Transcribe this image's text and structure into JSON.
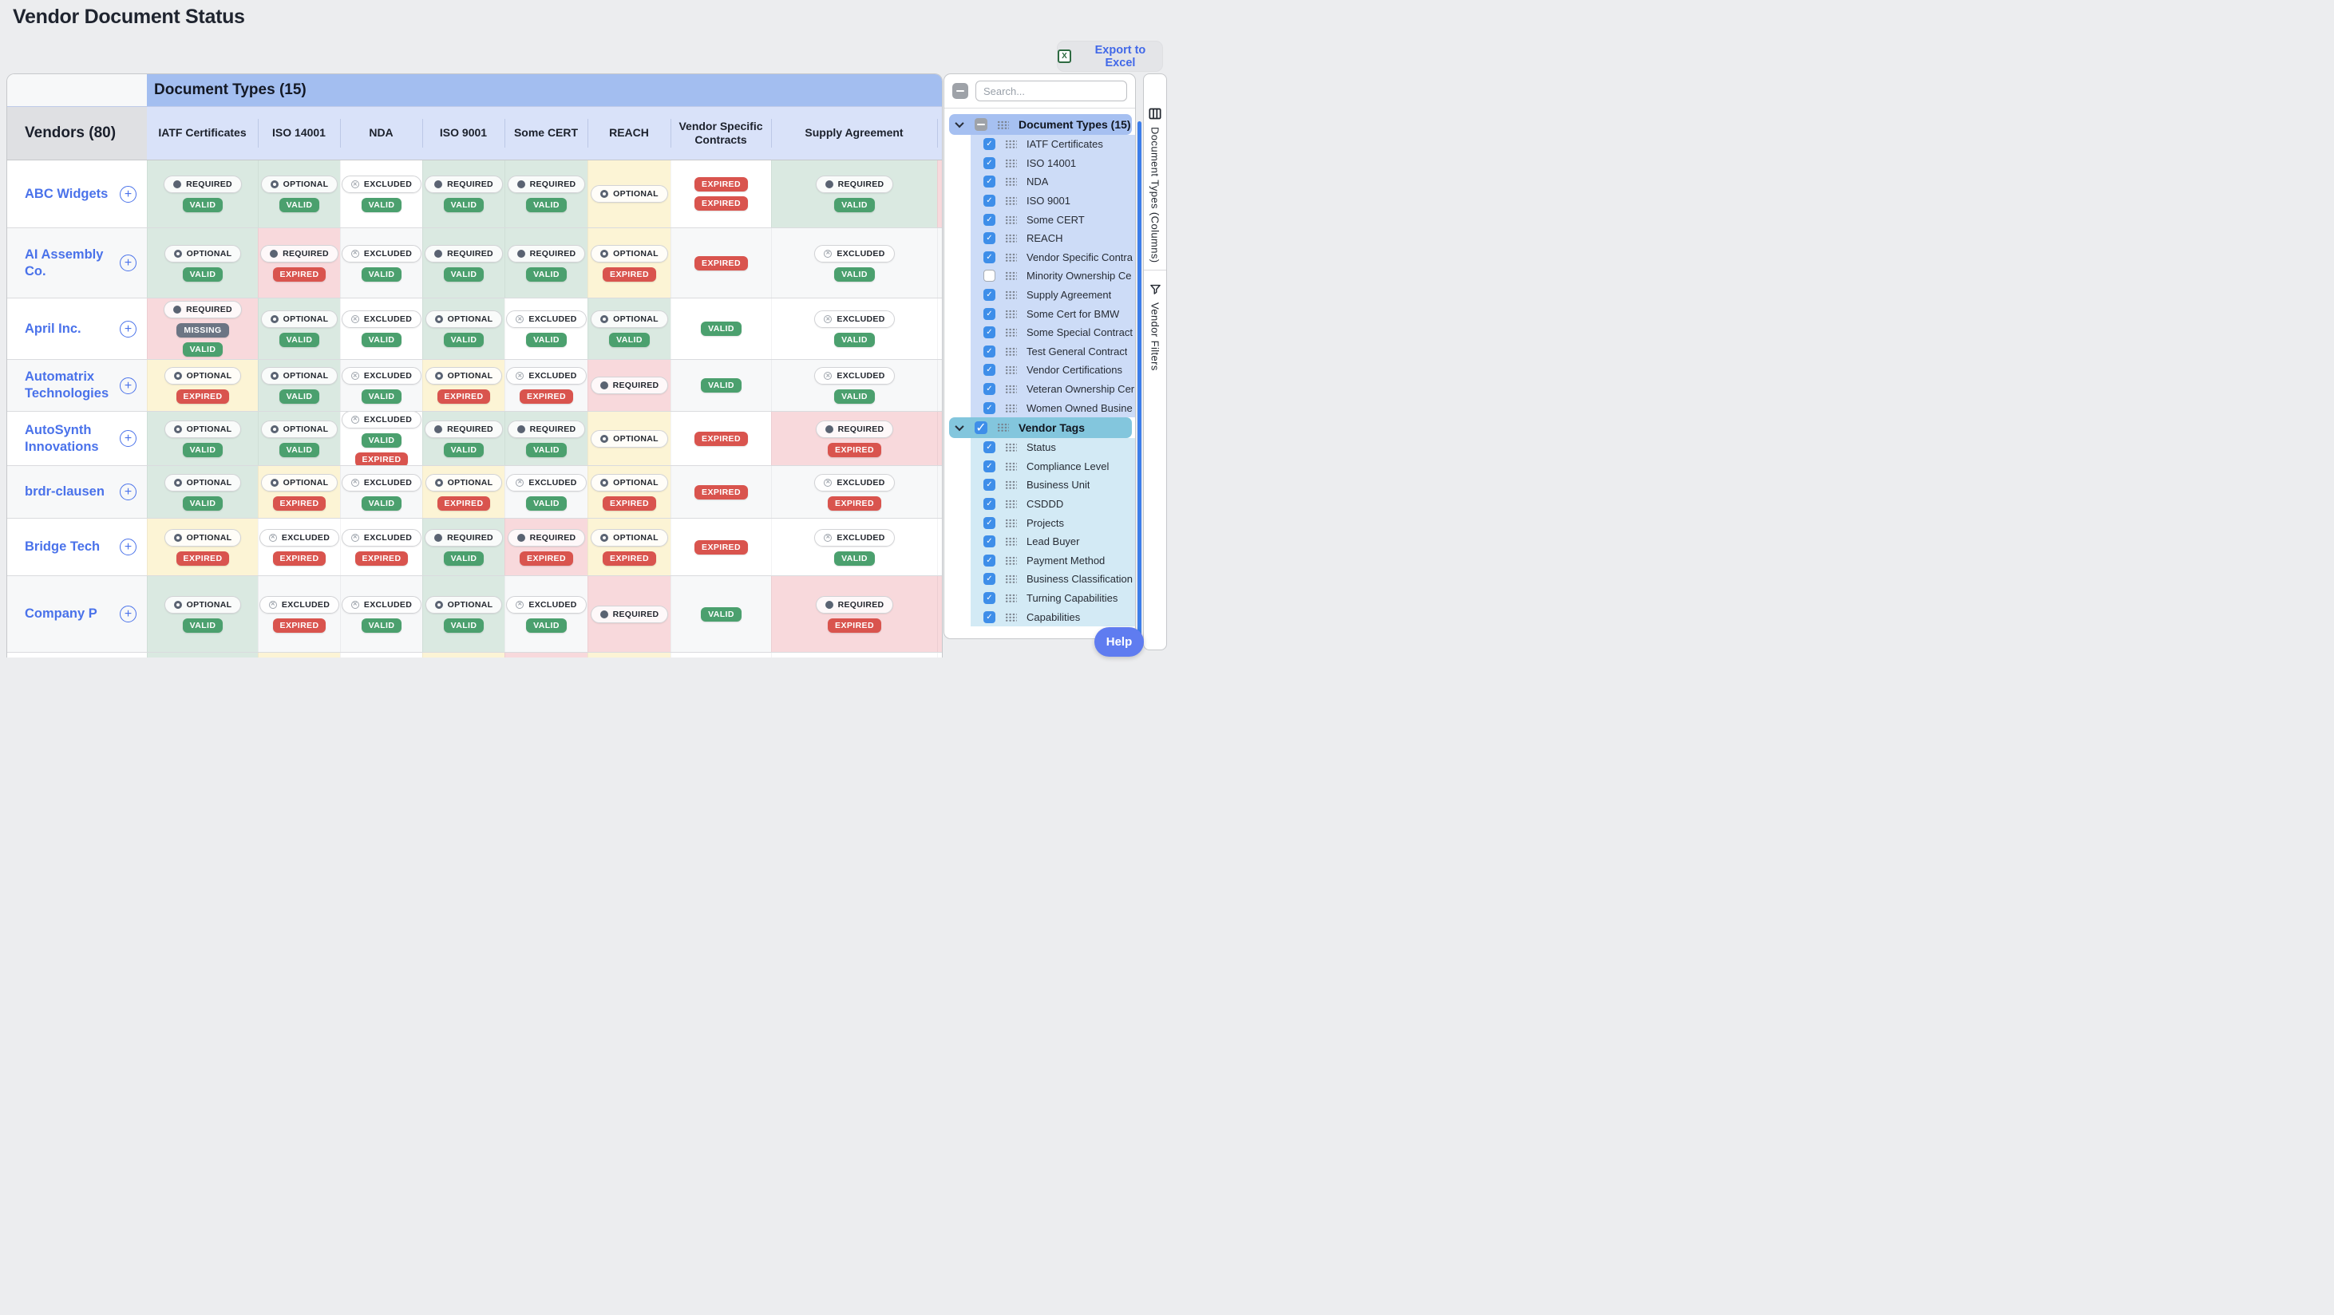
{
  "page": {
    "title": "Vendor Document Status",
    "export_label": "Export to Excel",
    "help_label": "Help"
  },
  "colors": {
    "accent_blue": "#4A72EA",
    "header_blue": "#A3BEF0",
    "subheader_blue": "#D9E2F9",
    "cell_green": "#DAE9E1",
    "cell_yellow": "#FCF4D5",
    "cell_pink": "#F8D9DC",
    "valid_green": "#4BA06E",
    "expired_red": "#D9544E",
    "missing_gray": "#6C7584",
    "checkbox_blue": "#3E8EE9",
    "tags_header_teal": "#83C6DD",
    "doc_list_blue": "#CDDCF7",
    "tags_list_cyan": "#D3EAF5",
    "help_blue": "#5F7CF0",
    "scrollbar_blue": "#3D7EE9"
  },
  "grid": {
    "group_header": "Document Types (15)",
    "corner_label": "Vendors (80)",
    "columns": [
      "IATF Certificates",
      "ISO 14001",
      "NDA",
      "ISO 9001",
      "Some CERT",
      "REACH",
      "Vendor Specific Contracts",
      "Supply Agreement"
    ],
    "requirement_icons": {
      "REQUIRED": "required-icon",
      "OPTIONAL": "optional-icon",
      "EXCLUDED": "excluded-icon"
    },
    "rows": [
      {
        "vendor": "ABC Widgets",
        "sliver": "pink",
        "cells": [
          {
            "bg": "green",
            "req": "REQUIRED",
            "statuses": [
              "VALID"
            ]
          },
          {
            "bg": "green",
            "req": "OPTIONAL",
            "statuses": [
              "VALID"
            ]
          },
          {
            "bg": "row",
            "req": "EXCLUDED",
            "statuses": [
              "VALID"
            ]
          },
          {
            "bg": "green",
            "req": "REQUIRED",
            "statuses": [
              "VALID"
            ]
          },
          {
            "bg": "green",
            "req": "REQUIRED",
            "statuses": [
              "VALID"
            ]
          },
          {
            "bg": "yellow",
            "req": "OPTIONAL",
            "statuses": []
          },
          {
            "bg": "row",
            "req": null,
            "statuses": [
              "EXPIRED",
              "EXPIRED"
            ]
          },
          {
            "bg": "green",
            "req": "REQUIRED",
            "statuses": [
              "VALID"
            ]
          }
        ]
      },
      {
        "vendor": "AI Assembly Co.",
        "sliver": "row",
        "cells": [
          {
            "bg": "green",
            "req": "OPTIONAL",
            "statuses": [
              "VALID"
            ]
          },
          {
            "bg": "pink",
            "req": "REQUIRED",
            "statuses": [
              "EXPIRED"
            ]
          },
          {
            "bg": "row",
            "req": "EXCLUDED",
            "statuses": [
              "VALID"
            ]
          },
          {
            "bg": "green",
            "req": "REQUIRED",
            "statuses": [
              "VALID"
            ]
          },
          {
            "bg": "green",
            "req": "REQUIRED",
            "statuses": [
              "VALID"
            ]
          },
          {
            "bg": "yellow",
            "req": "OPTIONAL",
            "statuses": [
              "EXPIRED"
            ]
          },
          {
            "bg": "row",
            "req": null,
            "statuses": [
              "EXPIRED"
            ]
          },
          {
            "bg": "row",
            "req": "EXCLUDED",
            "statuses": [
              "VALID"
            ]
          }
        ]
      },
      {
        "vendor": "April Inc.",
        "sliver": "row",
        "cells": [
          {
            "bg": "pink",
            "req": "REQUIRED",
            "statuses": [
              "MISSING",
              "VALID"
            ]
          },
          {
            "bg": "green",
            "req": "OPTIONAL",
            "statuses": [
              "VALID"
            ]
          },
          {
            "bg": "row",
            "req": "EXCLUDED",
            "statuses": [
              "VALID"
            ]
          },
          {
            "bg": "green",
            "req": "OPTIONAL",
            "statuses": [
              "VALID"
            ]
          },
          {
            "bg": "row",
            "req": "EXCLUDED",
            "statuses": [
              "VALID"
            ]
          },
          {
            "bg": "green",
            "req": "OPTIONAL",
            "statuses": [
              "VALID"
            ]
          },
          {
            "bg": "row",
            "req": null,
            "statuses": [
              "VALID"
            ]
          },
          {
            "bg": "row",
            "req": "EXCLUDED",
            "statuses": [
              "VALID"
            ]
          }
        ]
      },
      {
        "vendor": "Automatrix Technologies",
        "sliver": "row",
        "cells": [
          {
            "bg": "yellow",
            "req": "OPTIONAL",
            "statuses": [
              "EXPIRED"
            ]
          },
          {
            "bg": "green",
            "req": "OPTIONAL",
            "statuses": [
              "VALID"
            ]
          },
          {
            "bg": "row",
            "req": "EXCLUDED",
            "statuses": [
              "VALID"
            ]
          },
          {
            "bg": "yellow",
            "req": "OPTIONAL",
            "statuses": [
              "EXPIRED"
            ]
          },
          {
            "bg": "row",
            "req": "EXCLUDED",
            "statuses": [
              "EXPIRED"
            ]
          },
          {
            "bg": "pink",
            "req": "REQUIRED",
            "statuses": []
          },
          {
            "bg": "row",
            "req": null,
            "statuses": [
              "VALID"
            ]
          },
          {
            "bg": "row",
            "req": "EXCLUDED",
            "statuses": [
              "VALID"
            ]
          }
        ]
      },
      {
        "vendor": "AutoSynth Innovations",
        "sliver": "pink",
        "cells": [
          {
            "bg": "green",
            "req": "OPTIONAL",
            "statuses": [
              "VALID"
            ]
          },
          {
            "bg": "green",
            "req": "OPTIONAL",
            "statuses": [
              "VALID"
            ]
          },
          {
            "bg": "row",
            "req": "EXCLUDED",
            "statuses": [
              "VALID",
              "EXPIRED"
            ]
          },
          {
            "bg": "green",
            "req": "REQUIRED",
            "statuses": [
              "VALID"
            ]
          },
          {
            "bg": "green",
            "req": "REQUIRED",
            "statuses": [
              "VALID"
            ]
          },
          {
            "bg": "yellow",
            "req": "OPTIONAL",
            "statuses": []
          },
          {
            "bg": "row",
            "req": null,
            "statuses": [
              "EXPIRED"
            ]
          },
          {
            "bg": "pink",
            "req": "REQUIRED",
            "statuses": [
              "EXPIRED"
            ]
          }
        ]
      },
      {
        "vendor": "brdr-clausen",
        "sliver": "row",
        "cells": [
          {
            "bg": "green",
            "req": "OPTIONAL",
            "statuses": [
              "VALID"
            ]
          },
          {
            "bg": "yellow",
            "req": "OPTIONAL",
            "statuses": [
              "EXPIRED"
            ]
          },
          {
            "bg": "row",
            "req": "EXCLUDED",
            "statuses": [
              "VALID"
            ]
          },
          {
            "bg": "yellow",
            "req": "OPTIONAL",
            "statuses": [
              "EXPIRED"
            ]
          },
          {
            "bg": "row",
            "req": "EXCLUDED",
            "statuses": [
              "VALID"
            ]
          },
          {
            "bg": "yellow",
            "req": "OPTIONAL",
            "statuses": [
              "EXPIRED"
            ]
          },
          {
            "bg": "row",
            "req": null,
            "statuses": [
              "EXPIRED"
            ]
          },
          {
            "bg": "row",
            "req": "EXCLUDED",
            "statuses": [
              "EXPIRED"
            ]
          }
        ]
      },
      {
        "vendor": "Bridge Tech",
        "sliver": "row",
        "cells": [
          {
            "bg": "yellow",
            "req": "OPTIONAL",
            "statuses": [
              "EXPIRED"
            ]
          },
          {
            "bg": "row",
            "req": "EXCLUDED",
            "statuses": [
              "EXPIRED"
            ]
          },
          {
            "bg": "row",
            "req": "EXCLUDED",
            "statuses": [
              "EXPIRED"
            ]
          },
          {
            "bg": "green",
            "req": "REQUIRED",
            "statuses": [
              "VALID"
            ]
          },
          {
            "bg": "pink",
            "req": "REQUIRED",
            "statuses": [
              "EXPIRED"
            ]
          },
          {
            "bg": "yellow",
            "req": "OPTIONAL",
            "statuses": [
              "EXPIRED"
            ]
          },
          {
            "bg": "row",
            "req": null,
            "statuses": [
              "EXPIRED"
            ]
          },
          {
            "bg": "row",
            "req": "EXCLUDED",
            "statuses": [
              "VALID"
            ]
          }
        ]
      },
      {
        "vendor": "Company P",
        "sliver": "pink",
        "cells": [
          {
            "bg": "green",
            "req": "OPTIONAL",
            "statuses": [
              "VALID"
            ]
          },
          {
            "bg": "row",
            "req": "EXCLUDED",
            "statuses": [
              "EXPIRED"
            ]
          },
          {
            "bg": "row",
            "req": "EXCLUDED",
            "statuses": [
              "VALID"
            ]
          },
          {
            "bg": "green",
            "req": "OPTIONAL",
            "statuses": [
              "VALID"
            ]
          },
          {
            "bg": "row",
            "req": "EXCLUDED",
            "statuses": [
              "VALID"
            ]
          },
          {
            "bg": "pink",
            "req": "REQUIRED",
            "statuses": []
          },
          {
            "bg": "row",
            "req": null,
            "statuses": [
              "VALID"
            ]
          },
          {
            "bg": "pink",
            "req": "REQUIRED",
            "statuses": [
              "EXPIRED"
            ]
          }
        ]
      }
    ],
    "partial_row": {
      "cells_bg": [
        "green",
        "yellow",
        "row",
        "yellow",
        "pink",
        "yellow",
        "row",
        "row"
      ],
      "sliver": "row"
    }
  },
  "sidebar": {
    "search_placeholder": "Search...",
    "doc_types": {
      "label": "Document Types (15)",
      "items": [
        {
          "label": "IATF Certificates",
          "checked": true
        },
        {
          "label": "ISO 14001",
          "checked": true
        },
        {
          "label": "NDA",
          "checked": true
        },
        {
          "label": "ISO 9001",
          "checked": true
        },
        {
          "label": "Some CERT",
          "checked": true
        },
        {
          "label": "REACH",
          "checked": true
        },
        {
          "label": "Vendor Specific Contra",
          "checked": true
        },
        {
          "label": "Minority Ownership Ce",
          "checked": false
        },
        {
          "label": "Supply Agreement",
          "checked": true
        },
        {
          "label": "Some Cert for BMW",
          "checked": true
        },
        {
          "label": "Some Special Contract",
          "checked": true
        },
        {
          "label": "Test General Contract",
          "checked": true
        },
        {
          "label": "Vendor Certifications",
          "checked": true
        },
        {
          "label": "Veteran Ownership Cer",
          "checked": true
        },
        {
          "label": "Women Owned Busine",
          "checked": true
        }
      ]
    },
    "vendor_tags": {
      "label": "Vendor Tags",
      "items": [
        {
          "label": "Status",
          "checked": true
        },
        {
          "label": "Compliance Level",
          "checked": true
        },
        {
          "label": "Business Unit",
          "checked": true
        },
        {
          "label": "CSDDD",
          "checked": true
        },
        {
          "label": "Projects",
          "checked": true
        },
        {
          "label": "Lead Buyer",
          "checked": true
        },
        {
          "label": "Payment Method",
          "checked": true
        },
        {
          "label": "Business Classification",
          "checked": true
        },
        {
          "label": "Turning Capabilities",
          "checked": true
        },
        {
          "label": "Capabilities",
          "checked": true
        }
      ]
    },
    "tabs": [
      {
        "label": "Document Types (Columns)"
      },
      {
        "label": "Vendor Filters"
      }
    ]
  }
}
